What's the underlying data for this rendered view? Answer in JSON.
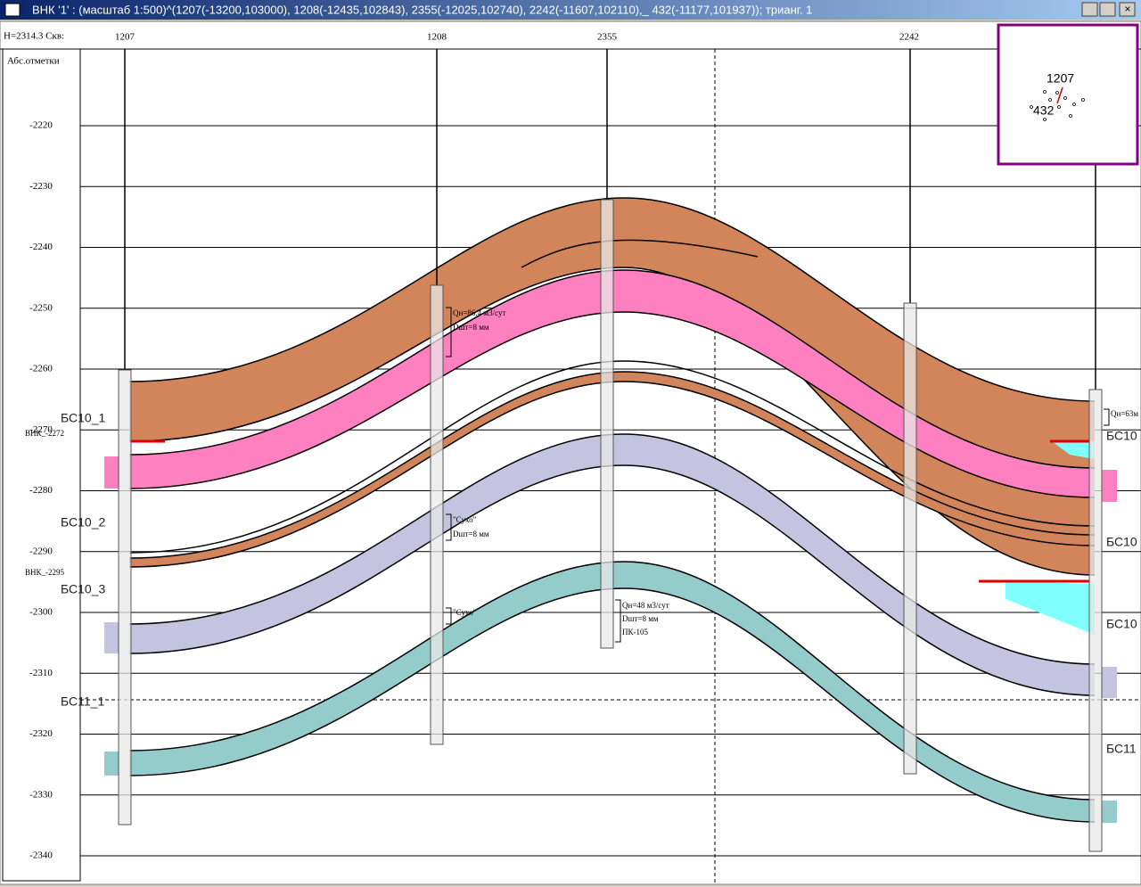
{
  "window": {
    "title": "ВНК '1' : (масштаб 1:500)^(1207(-13200,103000), 1208(-12435,102843), 2355(-12025,102740), 2242(-11607,102110),_ 432(-11177,101937)); трианг. 1"
  },
  "header": {
    "info": "H=2314.3 Скв:",
    "axis_label": "Абс.отметки"
  },
  "wells": [
    "1207",
    "1208",
    "2355",
    "2242"
  ],
  "depth_axis": {
    "ticks": [
      -2220,
      -2230,
      -2240,
      -2250,
      -2260,
      -2270,
      -2280,
      -2290,
      -2300,
      -2310,
      -2320,
      -2330,
      -2340
    ]
  },
  "layers_left": [
    "БС10_1",
    "БС10_2",
    "БС10_3",
    "БС11_1"
  ],
  "layers_right": [
    "БС10",
    "БС10",
    "БС10",
    "БС11"
  ],
  "owc_labels": [
    "ВНК_-2272",
    "ВНК_-2295"
  ],
  "annotations": [
    "Qн=86.4 м3/сут",
    "Dшт=8 мм",
    "\"Сухо\"",
    "Dшт=8 мм",
    "\"Сухо\"",
    "Qн=48 м3/сут",
    "Dшт=8 мм",
    "ПК-105",
    "Qн=63м"
  ],
  "inset": {
    "labels": [
      "1207",
      "432"
    ]
  }
}
